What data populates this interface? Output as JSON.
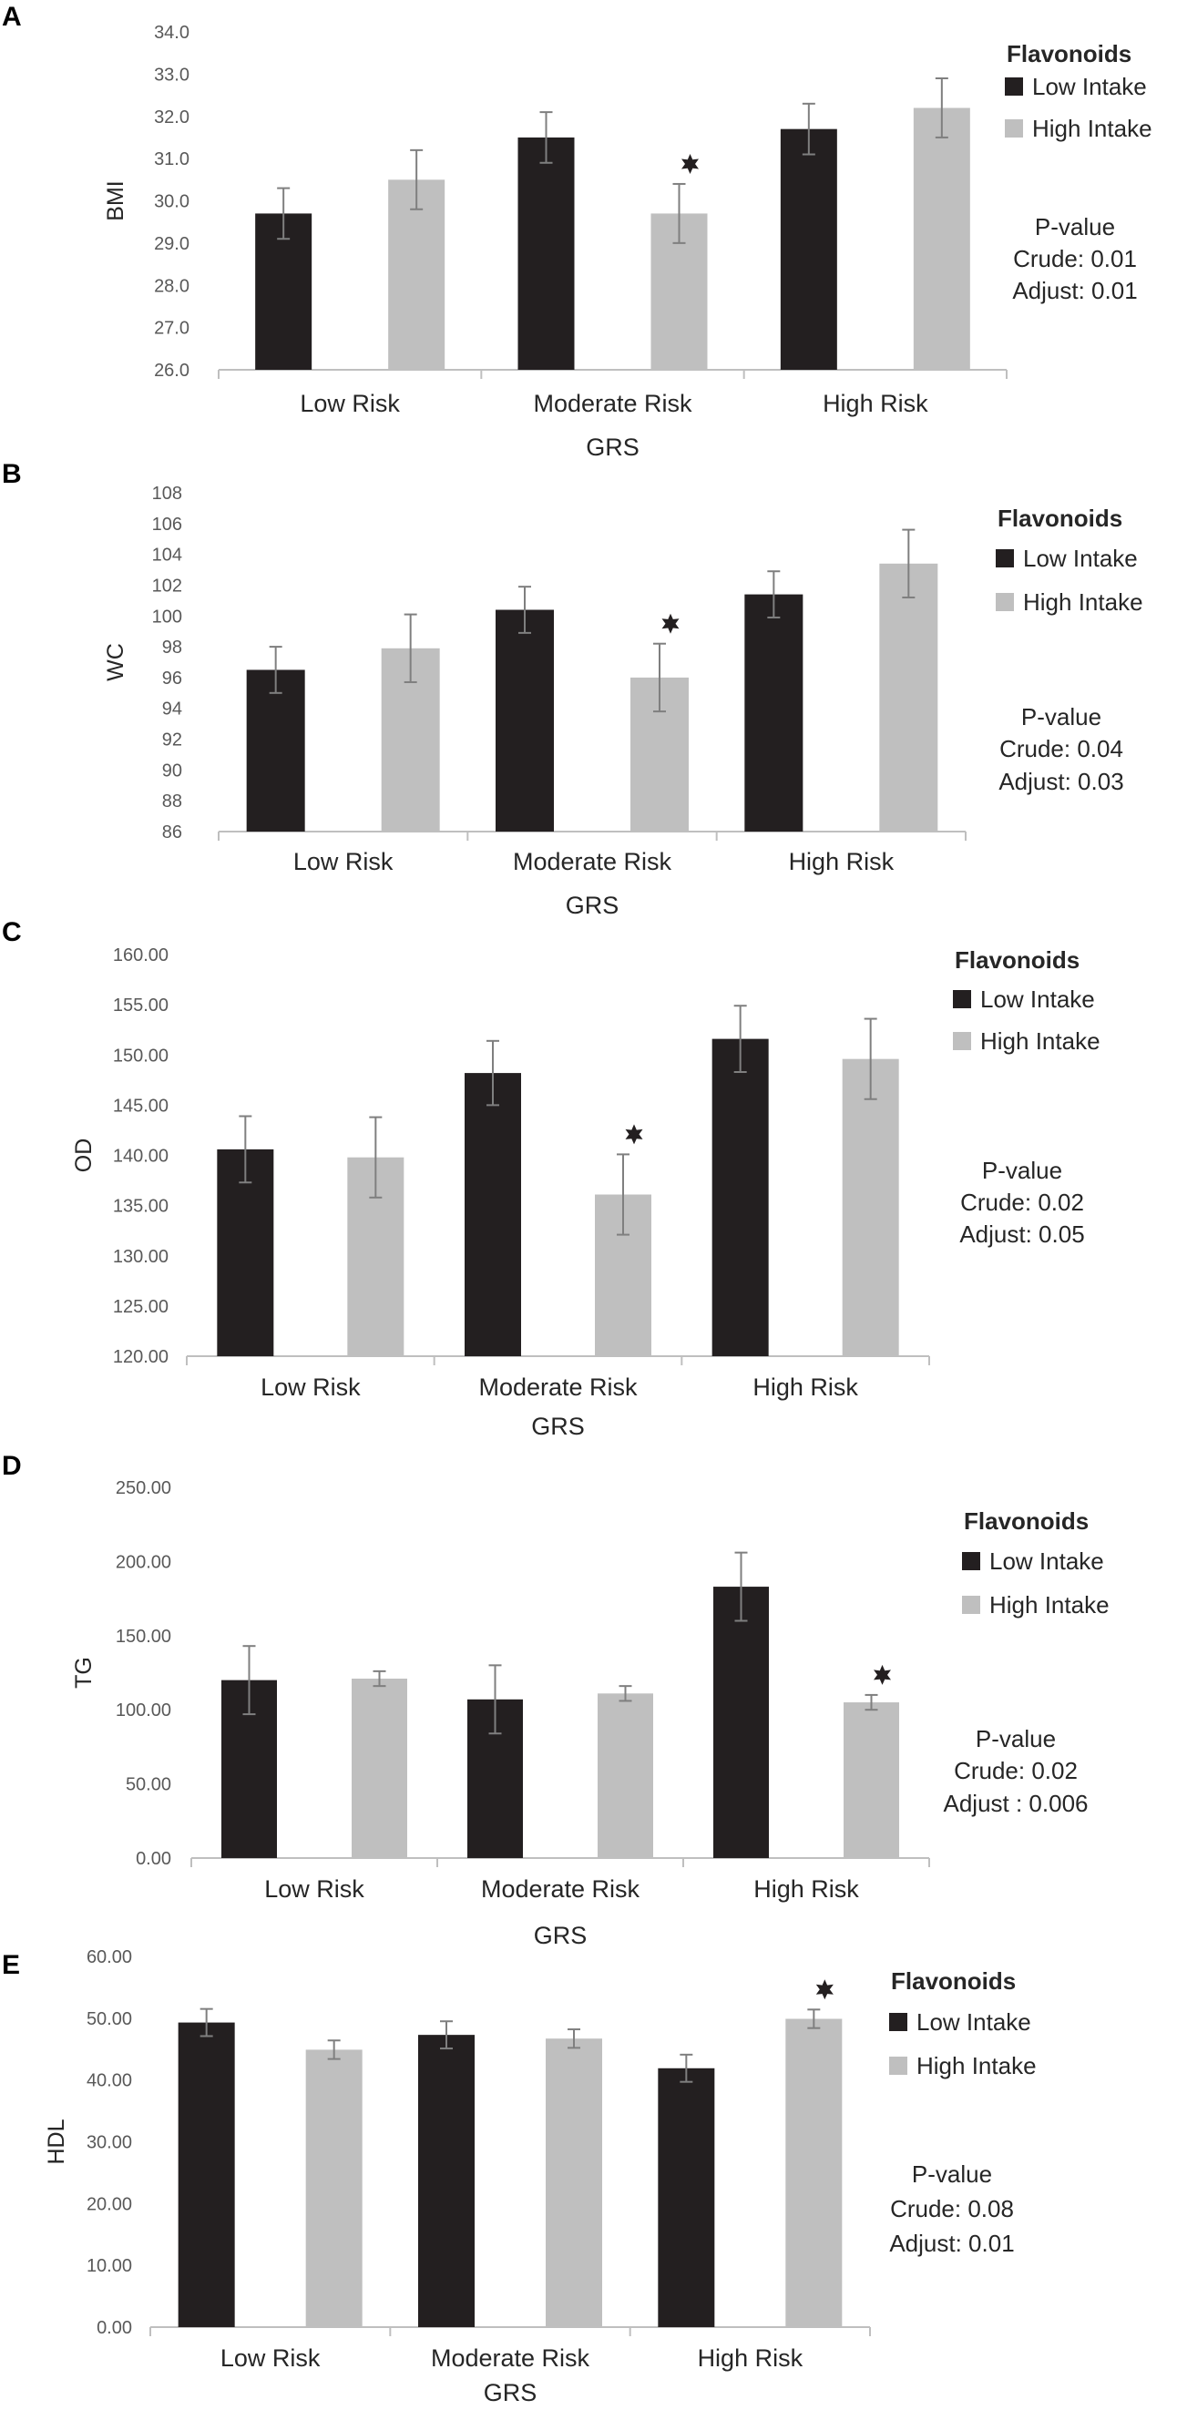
{
  "legend": {
    "title": "Flavonoids",
    "series": [
      {
        "name": "Low Intake",
        "color": "#231f20"
      },
      {
        "name": "High Intake",
        "color": "#bfbfbf"
      }
    ]
  },
  "chart_data": [
    {
      "panel": "A",
      "type": "bar",
      "xlabel": "GRS",
      "ylabel": "BMI",
      "categories": [
        "Low Risk",
        "Moderate Risk",
        "High Risk"
      ],
      "yticks": [
        "26.0",
        "27.0",
        "28.0",
        "29.0",
        "30.0",
        "31.0",
        "32.0",
        "33.0",
        "34.0"
      ],
      "ylim": [
        26,
        34
      ],
      "series": [
        {
          "name": "Low Intake",
          "values": [
            29.7,
            31.5,
            31.7
          ],
          "errors": [
            0.6,
            0.6,
            0.6
          ]
        },
        {
          "name": "High Intake",
          "values": [
            30.5,
            29.7,
            32.2
          ],
          "errors": [
            0.7,
            0.7,
            0.7
          ]
        }
      ],
      "annotations": [
        {
          "category": "Moderate Risk",
          "series": "High Intake",
          "symbol": "star"
        }
      ],
      "pvalue": {
        "title": "P-value",
        "crude": "Crude: 0.01",
        "adjust": "Adjust: 0.01"
      }
    },
    {
      "panel": "B",
      "type": "bar",
      "xlabel": "GRS",
      "ylabel": "WC",
      "categories": [
        "Low Risk",
        "Moderate Risk",
        "High Risk"
      ],
      "yticks": [
        "86",
        "88",
        "90",
        "92",
        "94",
        "96",
        "98",
        "100",
        "102",
        "104",
        "106",
        "108"
      ],
      "ylim": [
        86,
        108
      ],
      "series": [
        {
          "name": "Low Intake",
          "values": [
            96.5,
            100.4,
            101.4
          ],
          "errors": [
            1.5,
            1.5,
            1.5
          ]
        },
        {
          "name": "High Intake",
          "values": [
            97.9,
            96.0,
            103.4
          ],
          "errors": [
            2.2,
            2.2,
            2.2
          ]
        }
      ],
      "annotations": [
        {
          "category": "Moderate Risk",
          "series": "High Intake",
          "symbol": "star"
        }
      ],
      "pvalue": {
        "title": "P-value",
        "crude": "Crude: 0.04",
        "adjust": "Adjust: 0.03"
      }
    },
    {
      "panel": "C",
      "type": "bar",
      "xlabel": "GRS",
      "ylabel": "OD",
      "categories": [
        "Low Risk",
        "Moderate Risk",
        "High Risk"
      ],
      "yticks": [
        "120.00",
        "125.00",
        "130.00",
        "135.00",
        "140.00",
        "145.00",
        "150.00",
        "155.00",
        "160.00"
      ],
      "ylim": [
        120,
        160
      ],
      "series": [
        {
          "name": "Low Intake",
          "values": [
            140.6,
            148.2,
            151.6
          ],
          "errors": [
            3.3,
            3.2,
            3.3
          ]
        },
        {
          "name": "High Intake",
          "values": [
            139.8,
            136.1,
            149.6
          ],
          "errors": [
            4.0,
            4.0,
            4.0
          ]
        }
      ],
      "annotations": [
        {
          "category": "Moderate Risk",
          "series": "High Intake",
          "symbol": "star"
        }
      ],
      "pvalue": {
        "title": "P-value",
        "crude": "Crude: 0.02",
        "adjust": "Adjust: 0.05"
      }
    },
    {
      "panel": "D",
      "type": "bar",
      "xlabel": "GRS",
      "ylabel": "TG",
      "categories": [
        "Low Risk",
        "Moderate Risk",
        "High Risk"
      ],
      "yticks": [
        "0.00",
        "50.00",
        "100.00",
        "150.00",
        "200.00",
        "250.00"
      ],
      "ylim": [
        0,
        250
      ],
      "series": [
        {
          "name": "Low Intake",
          "values": [
            120,
            107,
            183
          ],
          "errors": [
            23,
            23,
            23
          ]
        },
        {
          "name": "High Intake",
          "values": [
            121,
            111,
            105
          ],
          "errors": [
            5,
            5,
            5
          ]
        }
      ],
      "annotations": [
        {
          "category": "High Risk",
          "series": "High Intake",
          "symbol": "star"
        }
      ],
      "pvalue": {
        "title": "P-value",
        "crude": "Crude: 0.02",
        "adjust": "Adjust : 0.006"
      }
    },
    {
      "panel": "E",
      "type": "bar",
      "xlabel": "GRS",
      "ylabel": "HDL",
      "categories": [
        "Low Risk",
        "Moderate Risk",
        "High Risk"
      ],
      "yticks": [
        "0.00",
        "10.00",
        "20.00",
        "30.00",
        "40.00",
        "50.00",
        "60.00"
      ],
      "ylim": [
        0,
        60
      ],
      "series": [
        {
          "name": "Low Intake",
          "values": [
            49.3,
            47.3,
            41.9
          ],
          "errors": [
            2.2,
            2.2,
            2.2
          ]
        },
        {
          "name": "High Intake",
          "values": [
            44.9,
            46.7,
            49.9
          ],
          "errors": [
            1.5,
            1.5,
            1.5
          ]
        }
      ],
      "annotations": [
        {
          "category": "High Risk",
          "series": "High Intake",
          "symbol": "star"
        }
      ],
      "pvalue": {
        "title": "P-value",
        "crude": "Crude: 0.08",
        "adjust": "Adjust: 0.01"
      }
    }
  ]
}
